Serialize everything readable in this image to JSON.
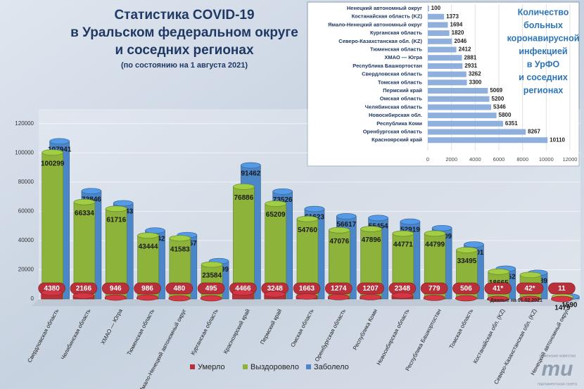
{
  "chart_data": [
    {
      "type": "bar",
      "title": [
        "Статистика COVID-19",
        "в Уральском федеральном округе",
        "и соседних регионах"
      ],
      "subtitle": "(по состоянию на 1 августа 2021)",
      "note": "* Данные на 01.02.2021",
      "categories": [
        "Свердловская область",
        "Челябинская область",
        "ХМАО — Югра",
        "Тюменская область",
        "Ямало-Ненецкий автономный округ",
        "Курганская область",
        "Красноярский край",
        "Пермский край",
        "Омская область",
        "Оренбургская область",
        "Республика Коми",
        "Новосибирская область",
        "Республика Башкортостан",
        "Томская область",
        "Костанайская обл. (KZ)",
        "Северо-Казахстанская обл. (KZ)",
        "Ненецкий автономный округ"
      ],
      "series": [
        {
          "name": "Умерло",
          "color": "#b8303a",
          "values": [
            4380,
            2166,
            946,
            986,
            480,
            495,
            4466,
            3248,
            1663,
            1274,
            1207,
            2348,
            779,
            506,
            41,
            42,
            11
          ],
          "value_labels": [
            "4380",
            "2166",
            "946",
            "986",
            "480",
            "495",
            "4466",
            "3248",
            "1663",
            "1274",
            "1207",
            "2348",
            "779",
            "506",
            "41*",
            "42*",
            "11"
          ]
        },
        {
          "name": "Выздоровело",
          "color": "#8db33a",
          "values": [
            100299,
            66334,
            61716,
            43444,
            41583,
            23584,
            76886,
            65209,
            54760,
            47076,
            47896,
            44771,
            44799,
            33495,
            18665,
            16474,
            1479
          ]
        },
        {
          "name": "Заболело",
          "color": "#4a86c8",
          "values": [
            107941,
            73846,
            65543,
            46842,
            43757,
            25899,
            91462,
            73526,
            61623,
            56617,
            55454,
            52919,
            48509,
            37301,
            20752,
            17889,
            1590
          ]
        }
      ],
      "ylim": [
        0,
        130000
      ],
      "yticks": [
        0,
        20000,
        40000,
        60000,
        80000,
        100000,
        120000
      ],
      "grid": true,
      "legend": "bottom"
    },
    {
      "type": "barh",
      "title": [
        "Количество",
        "больных",
        "коронавирусной",
        "инфекцией",
        "в УрФО",
        "и соседних",
        "регионах"
      ],
      "categories": [
        "Ненецкий автономный округ",
        "Костанайская область (KZ)",
        "Ямало-Ненецкий автономный округ",
        "Курганская область",
        "Северо-Казахстанская обл. (KZ)",
        "Тюменская область",
        "ХМАО — Югра",
        "Республика Башкортостан",
        "Свердловская область",
        "Томская область",
        "Пермский край",
        "Омская область",
        "Челябинская область",
        "Новосибирская обл.",
        "Республика Коми",
        "Оренбургская область",
        "Красноярский край"
      ],
      "values": [
        100,
        1373,
        1694,
        1820,
        2046,
        2412,
        2881,
        2931,
        3262,
        3300,
        5069,
        5200,
        5346,
        5800,
        6351,
        8267,
        10110
      ],
      "color": "#8fb0dd",
      "xlim": [
        0,
        12000
      ],
      "xticks": [
        0,
        2000,
        4000,
        6000,
        8000,
        10000,
        12000
      ]
    }
  ],
  "logo": {
    "mark": "ти",
    "top": "тюменские известия",
    "bottom": "парламентская газета"
  }
}
